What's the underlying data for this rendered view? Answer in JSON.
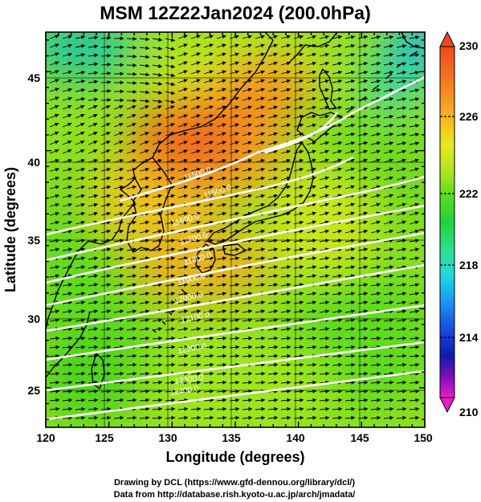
{
  "header": {
    "title": "MSM 12Z22Jan2024 (200.0hPa)"
  },
  "axes": {
    "xlabel": "Longitude (degrees)",
    "ylabel": "Latitude  (degrees)",
    "x_ticks": [
      "120",
      "125",
      "130",
      "135",
      "140",
      "145",
      "150"
    ],
    "y_ticks": [
      "25",
      "30",
      "35",
      "40",
      "45"
    ],
    "xlim": [
      120,
      150
    ],
    "ylim": [
      22.5,
      47.5
    ]
  },
  "colorbar": {
    "labels": [
      "230",
      "226",
      "222",
      "218",
      "214",
      "210"
    ],
    "range": [
      210,
      230
    ],
    "colors": [
      "#e71fc4",
      "#7a0fb5",
      "#0c1ab0",
      "#1a4fe0",
      "#1a9df5",
      "#22d9e0",
      "#2ee08c",
      "#1fd43a",
      "#5fdb1f",
      "#a8e61f",
      "#e8e81a",
      "#f5b51f",
      "#f57a1f",
      "#ee4a1f"
    ]
  },
  "map": {
    "contour_labels": [
      "11500.0",
      "11500.0",
      "11600.0",
      "11700.0",
      "11800.0",
      "11900.0",
      "12000.0",
      "12100.0",
      "12200.0",
      "12300.0",
      "12400.0"
    ],
    "colors": {
      "contour": "#ffffff",
      "coast": "#000000",
      "vector": "#000000",
      "grid": "#000000"
    }
  },
  "credits": {
    "line1": "Drawing by DCL (https://www.gfd-dennou.org/library/dcl/)",
    "line2": "Data from http://database.rish.kyoto-u.ac.jp/arch/jmadata/"
  },
  "chart_data": {
    "type": "heatmap",
    "title": "MSM 12Z22Jan2024 (200.0hPa)",
    "xlabel": "Longitude (degrees)",
    "ylabel": "Latitude  (degrees)",
    "xlim": [
      120,
      150
    ],
    "ylim": [
      22.5,
      47.5
    ],
    "colorbar_range": [
      210,
      230
    ],
    "colorbar_ticks": [
      230,
      226,
      222,
      218,
      214,
      210
    ],
    "contour_values": [
      11500,
      11600,
      11700,
      11800,
      11900,
      12000,
      12100,
      12200,
      12300,
      12400
    ],
    "grid": true,
    "legend": "right"
  }
}
